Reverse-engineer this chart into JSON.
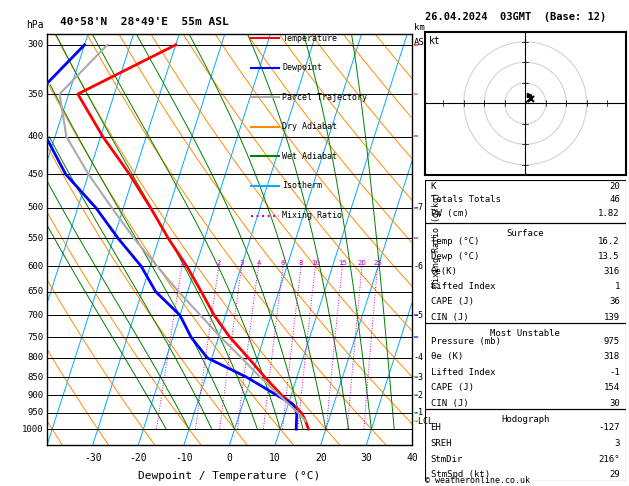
{
  "title_left": "40°58'N  28°49'E  55m ASL",
  "title_right": "26.04.2024  03GMT  (Base: 12)",
  "xlabel": "Dewpoint / Temperature (°C)",
  "footer": "© weatheronline.co.uk",
  "pressure_levels": [
    300,
    350,
    400,
    450,
    500,
    550,
    600,
    650,
    700,
    750,
    800,
    850,
    900,
    950,
    1000
  ],
  "temp_xticks": [
    -30,
    -20,
    -10,
    0,
    10,
    20,
    30,
    40
  ],
  "xmin": -40,
  "xmax": 40,
  "pbot": 1050,
  "ptop": 290,
  "skew_per_log": 22.5,
  "temp_profile": {
    "pressures": [
      1000,
      975,
      950,
      925,
      900,
      850,
      800,
      750,
      700,
      650,
      600,
      550,
      500,
      450,
      400,
      350,
      300
    ],
    "temps": [
      16.2,
      15.0,
      13.5,
      11.0,
      8.0,
      3.0,
      -2.0,
      -7.5,
      -12.5,
      -17.0,
      -22.0,
      -28.0,
      -34.0,
      -41.0,
      -49.5,
      -58.0,
      -40.0
    ],
    "color": "#ff0000",
    "linewidth": 2.0
  },
  "dewpoint_profile": {
    "pressures": [
      1000,
      975,
      950,
      925,
      900,
      850,
      800,
      750,
      700,
      650,
      600,
      550,
      500,
      450,
      400,
      350,
      300
    ],
    "temps": [
      13.5,
      13.0,
      12.5,
      11.0,
      7.0,
      -1.0,
      -11.0,
      -16.0,
      -20.0,
      -27.0,
      -32.0,
      -39.0,
      -46.0,
      -55.0,
      -62.0,
      -67.0,
      -60.0
    ],
    "color": "#0000ff",
    "linewidth": 2.0
  },
  "parcel_profile": {
    "pressures": [
      975,
      950,
      900,
      850,
      800,
      750,
      700,
      650,
      600,
      550,
      500,
      450,
      400,
      350,
      300
    ],
    "temps": [
      15.0,
      12.8,
      7.5,
      2.0,
      -3.5,
      -9.5,
      -15.5,
      -22.0,
      -28.5,
      -35.5,
      -42.5,
      -50.0,
      -57.5,
      -62.0,
      -55.0
    ],
    "color": "#aaaaaa",
    "linewidth": 1.5
  },
  "dry_adiabats": {
    "color": "#ff8c00",
    "linewidth": 0.7,
    "theta_C": [
      -40,
      -30,
      -20,
      -10,
      0,
      10,
      20,
      30,
      40,
      50,
      60,
      70,
      80,
      90,
      100,
      110,
      120
    ]
  },
  "wet_adiabats": {
    "color": "#008000",
    "linewidth": 0.7,
    "T0_C": [
      -15,
      -10,
      -5,
      0,
      5,
      10,
      15,
      20,
      25,
      30,
      35
    ]
  },
  "isotherms": {
    "color": "#00aaff",
    "linewidth": 0.7,
    "values": [
      -80,
      -70,
      -60,
      -50,
      -40,
      -30,
      -20,
      -10,
      0,
      10,
      20,
      30,
      40,
      50
    ]
  },
  "mixing_ratios": {
    "color": "#cc00cc",
    "linewidth": 0.7,
    "linestyle": ":",
    "values": [
      1,
      2,
      3,
      4,
      6,
      8,
      10,
      15,
      20,
      25
    ],
    "label_p": 600
  },
  "legend_items": [
    {
      "label": "Temperature",
      "color": "#ff0000",
      "ls": "-"
    },
    {
      "label": "Dewpoint",
      "color": "#0000ff",
      "ls": "-"
    },
    {
      "label": "Parcel Trajectory",
      "color": "#aaaaaa",
      "ls": "-"
    },
    {
      "label": "Dry Adiabat",
      "color": "#ff8c00",
      "ls": "-"
    },
    {
      "label": "Wet Adiabat",
      "color": "#008000",
      "ls": "-"
    },
    {
      "label": "Isotherm",
      "color": "#00aaff",
      "ls": "-"
    },
    {
      "label": "Mixing Ratio",
      "color": "#cc00cc",
      "ls": ":"
    }
  ],
  "km_scale": {
    "pressures": [
      500,
      600,
      700,
      800,
      850,
      900,
      950,
      975
    ],
    "labels": [
      "7",
      "6",
      "5",
      "4",
      "3",
      "2",
      "1",
      "LCL"
    ]
  },
  "wind_barb_colors": {
    "300": "#ff0000",
    "350": "#ff4400",
    "400": "#ff0000",
    "500": "#cc00cc",
    "550": "#cc00cc",
    "700": "#0000ff",
    "750": "#0000ff",
    "850": "#00bb00",
    "900": "#00bb00",
    "950": "#00bb00",
    "975": "#cccc00"
  },
  "stats": {
    "top": [
      [
        "K",
        "20"
      ],
      [
        "Totals Totals",
        "46"
      ],
      [
        "PW (cm)",
        "1.82"
      ]
    ],
    "surface_header": "Surface",
    "surface": [
      [
        "Temp (°C)",
        "16.2"
      ],
      [
        "Dewp (°C)",
        "13.5"
      ],
      [
        "θe(K)",
        "316"
      ],
      [
        "Lifted Index",
        "1"
      ],
      [
        "CAPE (J)",
        "36"
      ],
      [
        "CIN (J)",
        "139"
      ]
    ],
    "mu_header": "Most Unstable",
    "mu": [
      [
        "Pressure (mb)",
        "975"
      ],
      [
        "θe (K)",
        "318"
      ],
      [
        "Lifted Index",
        "-1"
      ],
      [
        "CAPE (J)",
        "154"
      ],
      [
        "CIN (J)",
        "30"
      ]
    ],
    "hodo_header": "Hodograph",
    "hodo": [
      [
        "EH",
        "-127"
      ],
      [
        "SREH",
        "3"
      ],
      [
        "StmDir",
        "216°"
      ],
      [
        "StmSpd (kt)",
        "29"
      ]
    ]
  }
}
